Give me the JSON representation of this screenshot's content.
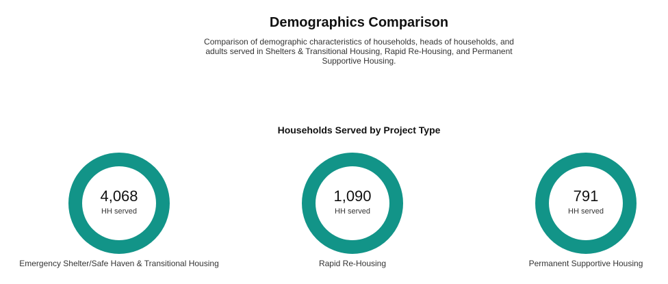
{
  "header": {
    "title": "Demographics Comparison",
    "subtitle": "Comparison of demographic characteristics of households, heads of households, and adults served in Shelters & Transitional Housing, Rapid Re-Housing, and Permanent Supportive Housing."
  },
  "chart_data": {
    "type": "donut",
    "title": "Households Served by Project Type",
    "unit_label": "HH served",
    "ring_color": "#129488",
    "categories": [
      "Emergency Shelter/Safe Haven & Transitional Housing",
      "Rapid Re-Housing",
      "Permanent Supportive Housing"
    ],
    "values": [
      4068,
      1090,
      791
    ],
    "value_labels": [
      "4,068",
      "1,090",
      "791"
    ]
  }
}
